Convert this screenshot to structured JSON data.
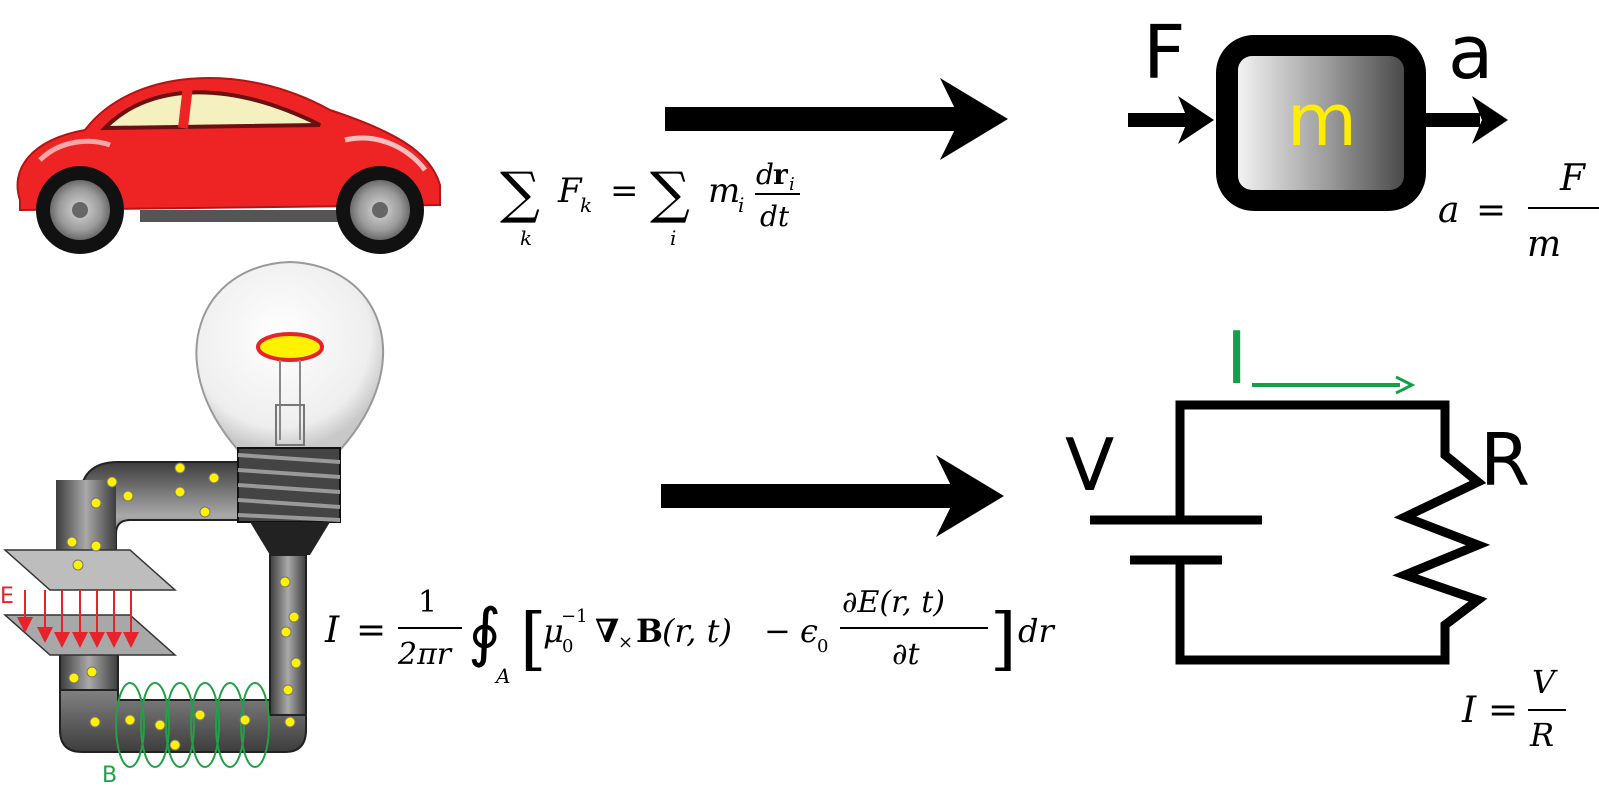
{
  "top_row": {
    "force_label": "F",
    "accel_label": "a",
    "mass_label": "m",
    "colors": {
      "car": "#ee2424",
      "mass_text": "#ffee00"
    },
    "equation": {
      "sigma1": "∑",
      "sub_k": "k",
      "F": "F",
      "F_sub": "k",
      "eq": "=",
      "sigma2": "∑",
      "sub_i": "i",
      "m": "m",
      "m_sub": "i",
      "num_d": "d",
      "num_r": "r",
      "num_sub": "i",
      "den": "dt"
    },
    "simple_eq": {
      "lhs": "a",
      "eq": "=",
      "num": "F",
      "den": "m"
    }
  },
  "bottom_row": {
    "current_label": "I",
    "voltage_label": "V",
    "resistance_label": "R",
    "e_field_label": "E",
    "b_field_label": "B",
    "colors": {
      "current": "#14a04a",
      "e_field": "#e8222a",
      "b_field": "#22a046",
      "charge": "#fff200"
    },
    "equation": {
      "lhs": "I",
      "eq": "=",
      "frac_num": "1",
      "frac_den": "2πr",
      "integral": "∮",
      "int_sub": "A",
      "lbr": "[",
      "mu": "μ",
      "mu_sub": "0",
      "mu_sup": "−1",
      "nabla": "∇",
      "cross": "×",
      "B": "B",
      "args1": "(r, t)",
      "minus": "−",
      "eps": "ϵ",
      "eps_sub": "0",
      "pnum": "∂E(r, t)",
      "pden": "∂t",
      "rbr": "]",
      "dr": "dr"
    },
    "simple_eq": {
      "lhs": "I",
      "eq": "=",
      "num": "V",
      "den": "R"
    }
  }
}
